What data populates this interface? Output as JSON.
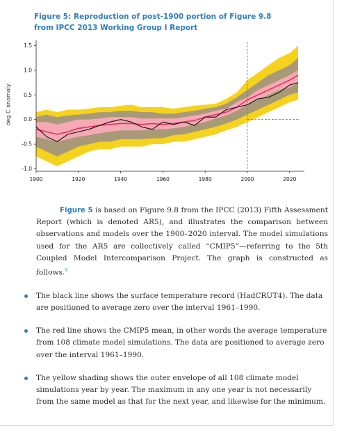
{
  "figure": {
    "title_line1": "Figure 5: Reproduction of post-1900 portion of Figure 9.8",
    "title_line2": "from IPCC 2013 Working Group I Report"
  },
  "chart_data": {
    "type": "line",
    "ylabel": "deg C anomaly",
    "xlim": [
      1900,
      2025
    ],
    "ylim": [
      -1.05,
      1.55
    ],
    "x_ticks": [
      1900,
      1920,
      1940,
      1960,
      1980,
      2000,
      2020
    ],
    "y_ticks": [
      "1.5",
      "1.0",
      "0.5",
      "0.0",
      "-0.5",
      "-1.0"
    ],
    "zero_line_dashed_from": 2000,
    "vertical_marker_year": 2000,
    "years": [
      1900,
      1905,
      1910,
      1915,
      1920,
      1925,
      1930,
      1935,
      1940,
      1945,
      1950,
      1955,
      1960,
      1965,
      1970,
      1975,
      1980,
      1985,
      1990,
      1995,
      2000,
      2005,
      2010,
      2015,
      2020,
      2024
    ],
    "series": [
      {
        "role": "outer envelope (yellow shading)",
        "color": "#f5d21c",
        "upper": [
          0.15,
          0.2,
          0.15,
          0.2,
          0.2,
          0.22,
          0.25,
          0.25,
          0.28,
          0.3,
          0.25,
          0.25,
          0.25,
          0.22,
          0.25,
          0.28,
          0.3,
          0.32,
          0.42,
          0.55,
          0.8,
          0.95,
          1.1,
          1.25,
          1.35,
          1.5
        ],
        "lower": [
          -0.75,
          -0.85,
          -0.95,
          -0.85,
          -0.75,
          -0.65,
          -0.6,
          -0.6,
          -0.55,
          -0.55,
          -0.55,
          -0.5,
          -0.5,
          -0.45,
          -0.45,
          -0.4,
          -0.35,
          -0.3,
          -0.22,
          -0.15,
          -0.05,
          0.05,
          0.15,
          0.25,
          0.35,
          0.4
        ]
      },
      {
        "role": "model spread (grey-brown shading)",
        "color": "#a89a78",
        "upper": [
          0.05,
          0.1,
          0.05,
          0.08,
          0.1,
          0.12,
          0.15,
          0.15,
          0.18,
          0.18,
          0.15,
          0.15,
          0.12,
          0.12,
          0.15,
          0.18,
          0.22,
          0.25,
          0.32,
          0.45,
          0.6,
          0.75,
          0.9,
          1.0,
          1.1,
          1.25
        ],
        "lower": [
          -0.55,
          -0.65,
          -0.75,
          -0.65,
          -0.55,
          -0.5,
          -0.45,
          -0.45,
          -0.4,
          -0.4,
          -0.4,
          -0.38,
          -0.38,
          -0.32,
          -0.3,
          -0.25,
          -0.2,
          -0.15,
          -0.08,
          0.0,
          0.1,
          0.2,
          0.3,
          0.4,
          0.5,
          0.55
        ]
      },
      {
        "role": "central range (pink shading)",
        "color": "#f4a9b4",
        "upper": [
          -0.05,
          -0.05,
          -0.1,
          -0.05,
          0.0,
          0.0,
          0.02,
          0.05,
          0.05,
          0.05,
          0.02,
          0.02,
          0.02,
          0.02,
          0.05,
          0.08,
          0.12,
          0.18,
          0.22,
          0.35,
          0.45,
          0.6,
          0.7,
          0.8,
          0.9,
          1.0
        ],
        "lower": [
          -0.35,
          -0.4,
          -0.45,
          -0.4,
          -0.35,
          -0.32,
          -0.28,
          -0.25,
          -0.22,
          -0.22,
          -0.22,
          -0.2,
          -0.2,
          -0.18,
          -0.15,
          -0.1,
          -0.05,
          0.02,
          0.08,
          0.18,
          0.3,
          0.4,
          0.5,
          0.6,
          0.65,
          0.75
        ]
      },
      {
        "name": "",
        "role": "CMIP5 mean (red line)",
        "color": "#e8325a",
        "values": [
          -0.2,
          -0.25,
          -0.3,
          -0.25,
          -0.18,
          -0.15,
          -0.12,
          -0.1,
          -0.08,
          -0.08,
          -0.1,
          -0.08,
          -0.1,
          -0.08,
          -0.05,
          -0.02,
          0.05,
          0.1,
          0.15,
          0.25,
          0.4,
          0.5,
          0.6,
          0.7,
          0.8,
          0.9
        ]
      },
      {
        "name": "",
        "role": "HadCRUT4 (black line)",
        "color": "#111111",
        "values": [
          -0.15,
          -0.35,
          -0.45,
          -0.3,
          -0.25,
          -0.2,
          -0.12,
          -0.05,
          0.0,
          -0.05,
          -0.15,
          -0.2,
          -0.05,
          -0.1,
          -0.05,
          -0.12,
          0.05,
          0.05,
          0.2,
          0.25,
          0.3,
          0.42,
          0.45,
          0.55,
          0.7,
          0.75
        ]
      }
    ]
  },
  "text": {
    "para_lead": "Figure 5",
    "para_body": " is based on Figure 9.8 from the IPCC (2013) Fifth Assessment Report (which is denoted AR5), and illustrates the comparison between observations and models over the 1900–2020 interval. The model simulations used for the AR5 are collectively called “CMIP5”—referring to the 5th Coupled Model Intercomparison Project. The graph is constructed as follows.",
    "footnote_marker": "9",
    "bullets": [
      "The black line shows the surface temperature record (HadCRUT4). The data are positioned to average zero over the interval 1961–1990.",
      "The red line shows the CMIP5 mean, in other words the average temperature from 108 climate model simulations. The data are positioned to average zero over the interval 1961–1990.",
      "The yellow shading shows the outer envelope of all 108 climate model simulations year by year. The maximum in any one year is not necessarily from the same model as that for the next year, and likewise for the minimum."
    ]
  }
}
